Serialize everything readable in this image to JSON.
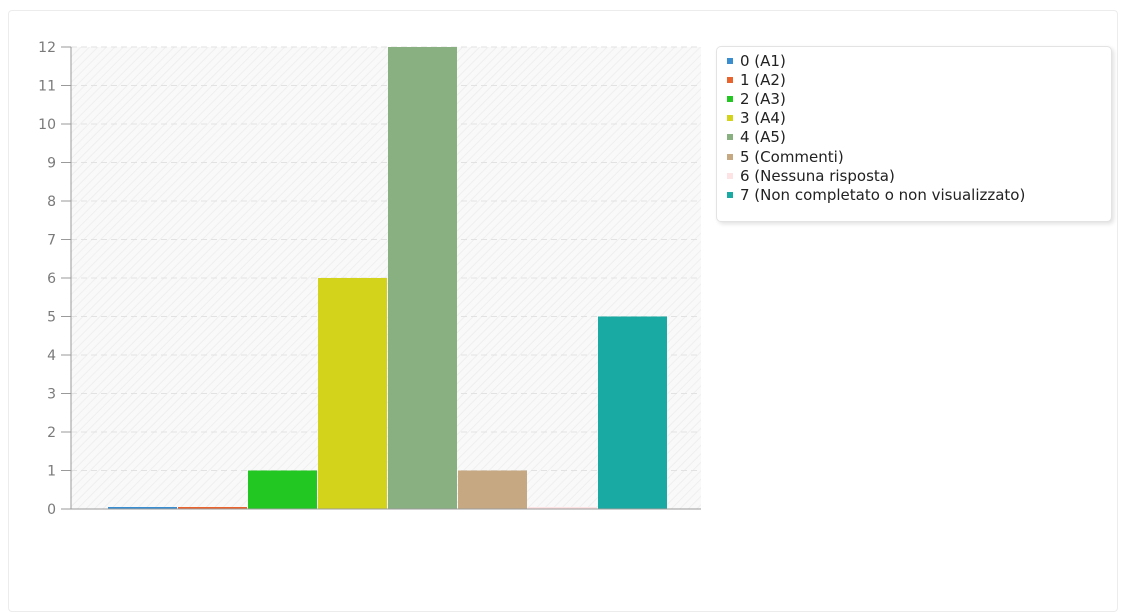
{
  "chart_data": {
    "type": "bar",
    "categories": [
      "0 (A1)",
      "1 (A2)",
      "2 (A3)",
      "3 (A4)",
      "4 (A5)",
      "5 (Commenti)",
      "6 (Nessuna risposta)",
      "7 (Non completato o non visualizzato)"
    ],
    "values": [
      0,
      0,
      1,
      6,
      12,
      1,
      0,
      5
    ],
    "colors": [
      "#3a8ed0",
      "#e8632e",
      "#22c722",
      "#d3d31b",
      "#88b080",
      "#c6a982",
      "#fde3e3",
      "#19aaa3"
    ],
    "ylim": [
      0,
      12
    ],
    "yticks": [
      "0",
      "1",
      "2",
      "3",
      "4",
      "5",
      "6",
      "7",
      "8",
      "9",
      "10",
      "11",
      "12"
    ],
    "grid": true,
    "legend_position": "right",
    "title": "",
    "xlabel": "",
    "ylabel": ""
  }
}
